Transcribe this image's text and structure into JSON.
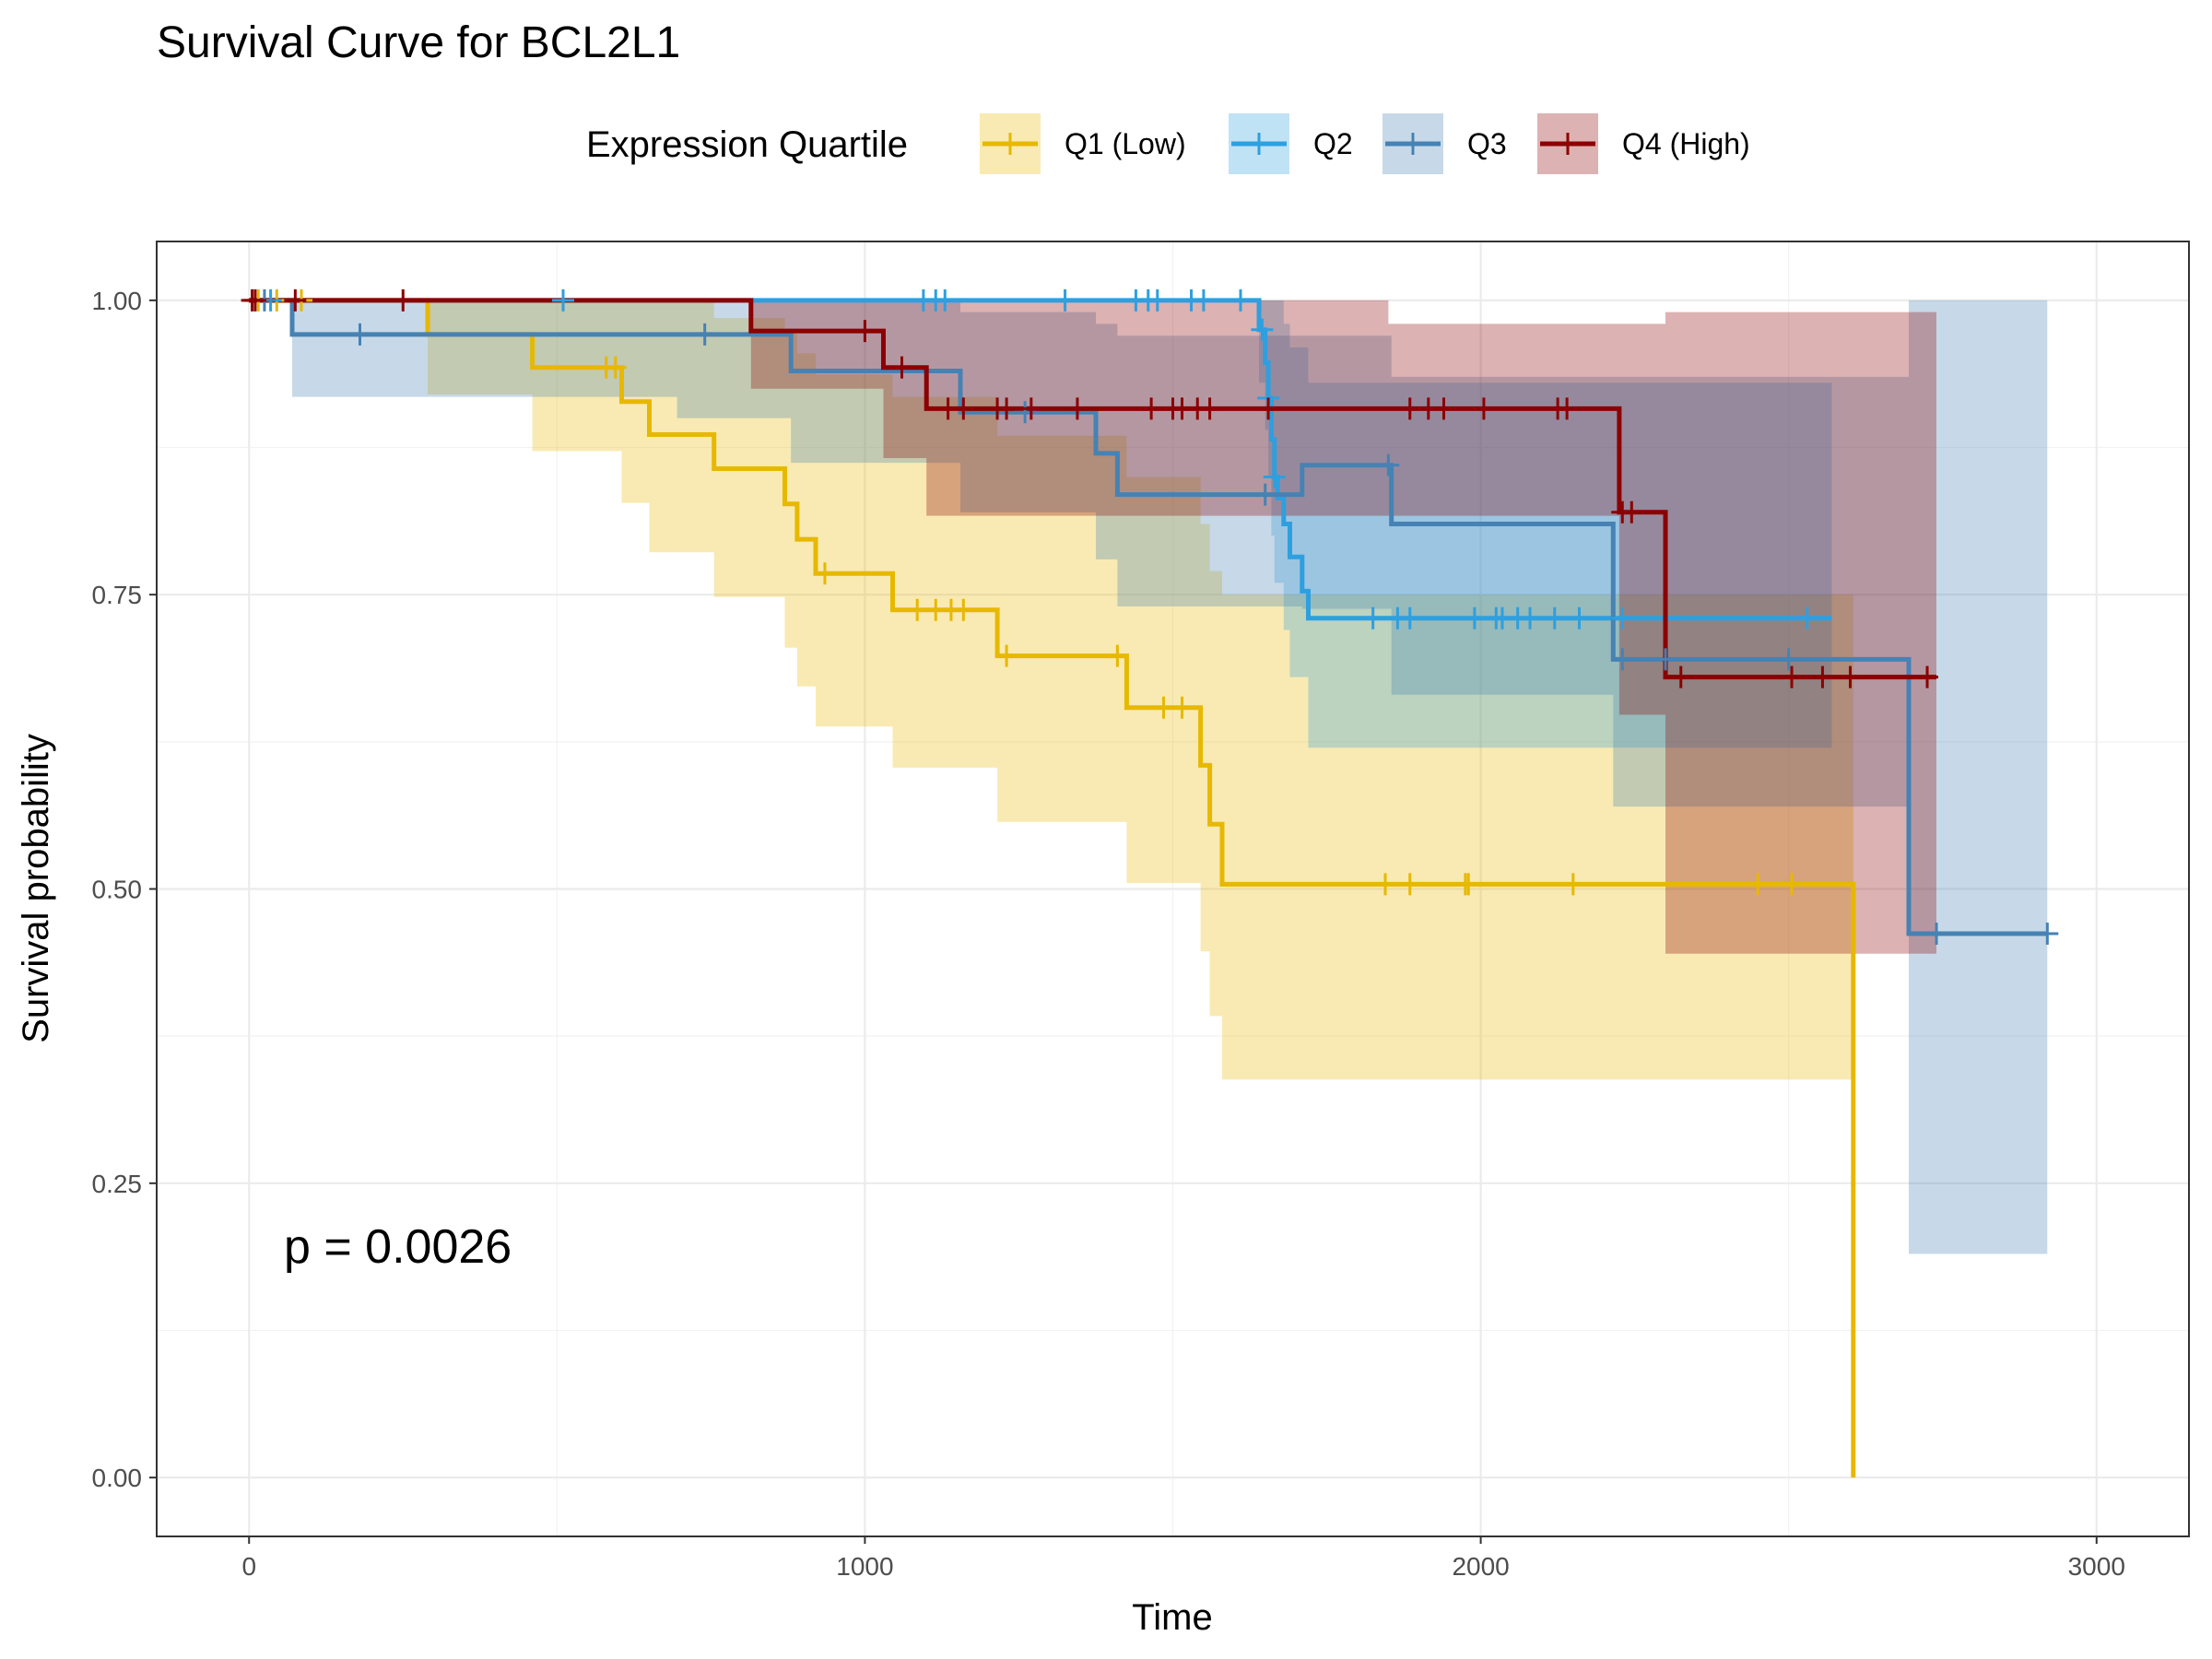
{
  "chart_data": {
    "type": "line",
    "subtype": "kaplan-meier",
    "title": "Survival Curve for BCL2L1",
    "xlabel": "Time",
    "ylabel": "Survival probability",
    "xlim": [
      -150,
      3150
    ],
    "ylim": [
      -0.05,
      1.05
    ],
    "x_ticks": [
      0,
      1000,
      2000,
      3000
    ],
    "x_tick_labels": [
      "0",
      "1000",
      "2000",
      "3000"
    ],
    "y_ticks": [
      0,
      0.25,
      0.5,
      0.75,
      1.0
    ],
    "y_tick_labels": [
      "0.00",
      "0.25",
      "0.50",
      "0.75",
      "1.00"
    ],
    "grid": true,
    "legend": {
      "title": "Expression Quartile",
      "position": "top"
    },
    "annotation": {
      "text": "p = 0.0026",
      "x": 60,
      "y": 0.19
    },
    "series": [
      {
        "name": "Q1 (Low)",
        "color": "#E7B800",
        "steps": [
          [
            0,
            1.0
          ],
          [
            290,
            0.971
          ],
          [
            460,
            0.943
          ],
          [
            605,
            0.914
          ],
          [
            650,
            0.886
          ],
          [
            755,
            0.857
          ],
          [
            870,
            0.827
          ],
          [
            890,
            0.797
          ],
          [
            920,
            0.768
          ],
          [
            1045,
            0.737
          ],
          [
            1215,
            0.698
          ],
          [
            1425,
            0.654
          ],
          [
            1545,
            0.605
          ],
          [
            1560,
            0.555
          ],
          [
            1580,
            0.504
          ],
          [
            2605,
            0.504
          ],
          [
            2605,
            0.0
          ]
        ],
        "ci": [
          [
            0,
            1.0,
            1.0
          ],
          [
            290,
            0.92,
            1.0
          ],
          [
            460,
            0.872,
            1.0
          ],
          [
            605,
            0.828,
            1.0
          ],
          [
            650,
            0.786,
            1.0
          ],
          [
            755,
            0.748,
            0.985
          ],
          [
            870,
            0.705,
            0.972
          ],
          [
            890,
            0.672,
            0.955
          ],
          [
            920,
            0.638,
            0.937
          ],
          [
            1045,
            0.603,
            0.918
          ],
          [
            1215,
            0.557,
            0.885
          ],
          [
            1425,
            0.505,
            0.85
          ],
          [
            1545,
            0.447,
            0.81
          ],
          [
            1560,
            0.392,
            0.77
          ],
          [
            1580,
            0.338,
            0.75
          ],
          [
            2605,
            0.338,
            0.75
          ]
        ],
        "censor_x": [
          15,
          45,
          85,
          580,
          595,
          935,
          1085,
          1115,
          1140,
          1160,
          1230,
          1410,
          1485,
          1515,
          1845,
          1885,
          1975,
          1980,
          2150,
          2450,
          2505
        ]
      },
      {
        "name": "Q2",
        "color": "#2E9FDF",
        "steps": [
          [
            0,
            1.0
          ],
          [
            1640,
            0.975
          ],
          [
            1650,
            0.947
          ],
          [
            1655,
            0.917
          ],
          [
            1660,
            0.882
          ],
          [
            1665,
            0.85
          ],
          [
            1670,
            0.832
          ],
          [
            1680,
            0.81
          ],
          [
            1690,
            0.782
          ],
          [
            1710,
            0.753
          ],
          [
            1720,
            0.73
          ],
          [
            2570,
            0.73
          ]
        ],
        "ci": [
          [
            0,
            1.0,
            1.0
          ],
          [
            1640,
            0.93,
            1.0
          ],
          [
            1650,
            0.89,
            1.0
          ],
          [
            1655,
            0.85,
            1.0
          ],
          [
            1660,
            0.8,
            1.0
          ],
          [
            1665,
            0.76,
            1.0
          ],
          [
            1680,
            0.72,
            0.98
          ],
          [
            1690,
            0.68,
            0.96
          ],
          [
            1720,
            0.62,
            0.93
          ],
          [
            2570,
            0.62,
            0.93
          ]
        ],
        "censor_x": [
          35,
          510,
          1095,
          1115,
          1130,
          1325,
          1440,
          1460,
          1475,
          1530,
          1550,
          1610,
          1645,
          1655,
          1665,
          1825,
          1865,
          1885,
          1990,
          2025,
          2035,
          2060,
          2080,
          2120,
          2160,
          2230,
          2530
        ]
      },
      {
        "name": "Q3",
        "color": "#4682B4",
        "steps": [
          [
            0,
            1.0
          ],
          [
            70,
            0.971
          ],
          [
            590,
            0.971
          ],
          [
            880,
            0.94
          ],
          [
            1155,
            0.905
          ],
          [
            1375,
            0.87
          ],
          [
            1410,
            0.835
          ],
          [
            1545,
            0.835
          ],
          [
            1710,
            0.86
          ],
          [
            1855,
            0.81
          ],
          [
            2215,
            0.695
          ],
          [
            2695,
            0.462
          ],
          [
            2920,
            0.462
          ]
        ],
        "ci": [
          [
            0,
            1.0,
            1.0
          ],
          [
            70,
            0.918,
            1.0
          ],
          [
            695,
            0.9,
            1.0
          ],
          [
            880,
            0.862,
            1.0
          ],
          [
            1155,
            0.82,
            0.99
          ],
          [
            1375,
            0.78,
            0.98
          ],
          [
            1410,
            0.74,
            0.97
          ],
          [
            1710,
            0.738,
            0.97
          ],
          [
            1855,
            0.665,
            0.935
          ],
          [
            2215,
            0.57,
            0.935
          ],
          [
            2695,
            0.19,
            1.0
          ],
          [
            2920,
            0.19,
            1.0
          ]
        ],
        "censor_x": [
          25,
          180,
          740,
          1260,
          1650,
          1850,
          2230,
          2300,
          2500,
          2740,
          2920
        ]
      },
      {
        "name": "Q4 (High)",
        "color": "#8B0000",
        "steps": [
          [
            0,
            1.0
          ],
          [
            815,
            0.974
          ],
          [
            1030,
            0.943
          ],
          [
            1100,
            0.908
          ],
          [
            1395,
            0.908
          ],
          [
            2225,
            0.82
          ],
          [
            2300,
            0.68
          ],
          [
            2740,
            0.68
          ]
        ],
        "ci": [
          [
            0,
            1.0,
            1.0
          ],
          [
            815,
            0.925,
            1.0
          ],
          [
            1030,
            0.866,
            1.0
          ],
          [
            1100,
            0.817,
            1.0
          ],
          [
            1850,
            0.817,
            0.98
          ],
          [
            2225,
            0.648,
            0.98
          ],
          [
            2300,
            0.445,
            0.99
          ],
          [
            2740,
            0.445,
            0.99
          ]
        ],
        "censor_x": [
          5,
          10,
          75,
          250,
          1000,
          1060,
          1135,
          1160,
          1215,
          1230,
          1270,
          1345,
          1465,
          1500,
          1515,
          1540,
          1560,
          1655,
          1885,
          1915,
          1940,
          2005,
          2125,
          2140,
          2230,
          2245,
          2325,
          2505,
          2555,
          2600,
          2725
        ]
      }
    ]
  }
}
